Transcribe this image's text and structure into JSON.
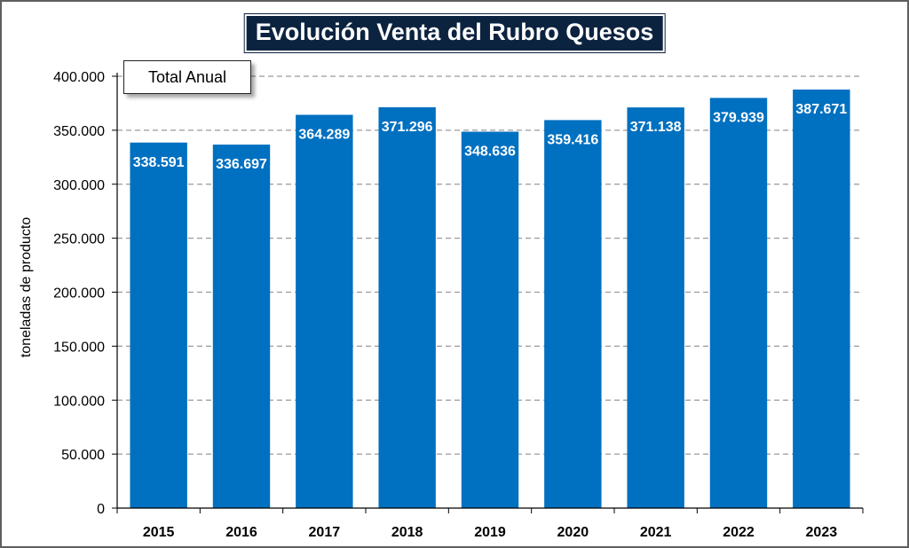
{
  "chart_data": {
    "type": "bar",
    "title": "Evolución Venta del Rubro Quesos",
    "ylabel": "toneladas de producto",
    "xlabel": "",
    "legend": "Total Anual",
    "legend_position": "top-left",
    "categories": [
      "2015",
      "2016",
      "2017",
      "2018",
      "2019",
      "2020",
      "2021",
      "2022",
      "2023"
    ],
    "values": [
      338591,
      336697,
      364289,
      371296,
      348636,
      359416,
      371138,
      379939,
      387671
    ],
    "data_labels": [
      "338.591",
      "336.697",
      "364.289",
      "371.296",
      "348.636",
      "359.416",
      "371.138",
      "379.939",
      "387.671"
    ],
    "ylim": [
      0,
      400000
    ],
    "yticks": [
      0,
      50000,
      100000,
      150000,
      200000,
      250000,
      300000,
      350000,
      400000
    ],
    "ytick_labels": [
      "0",
      "50.000",
      "100.000",
      "150.000",
      "200.000",
      "250.000",
      "300.000",
      "350.000",
      "400.000"
    ],
    "grid": "horizontal dashed",
    "colors": {
      "bar": "#0070c0",
      "title_bg": "#0c2340",
      "grid": "#9a9a9a"
    }
  }
}
